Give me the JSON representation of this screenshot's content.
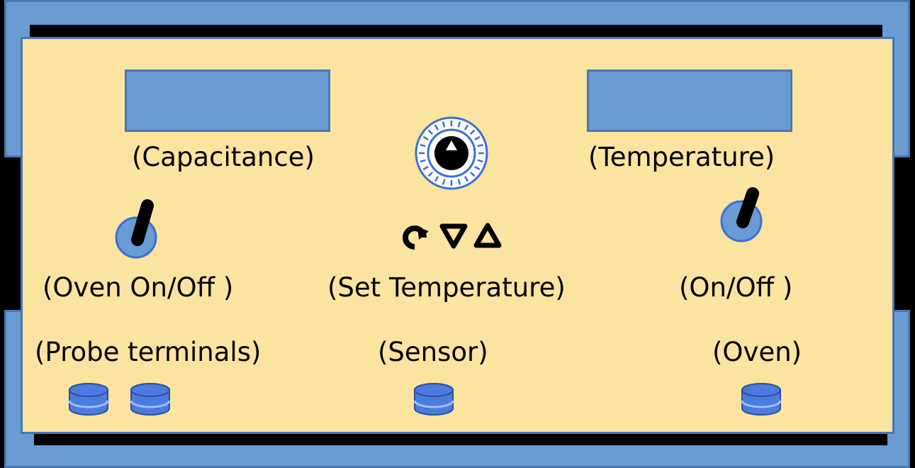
{
  "labels": {
    "capacitance": "(Capacitance)",
    "temperature": "(Temperature)",
    "oven_switch": "(Oven On/Off )",
    "set_temperature": "(Set Temperature)",
    "power_switch": "(On/Off )",
    "probe_terminals": "(Probe terminals)",
    "sensor": "(Sensor)",
    "oven": "(Oven)"
  },
  "icons": {
    "knob": "dial-knob-icon",
    "rotate": "rotate-clockwise-icon",
    "down": "triangle-down-icon",
    "up": "triangle-up-icon"
  },
  "colors": {
    "panel": "#fbe4a0",
    "frame": "#6a9bd2",
    "frame_border": "#4a78b0",
    "terminal": "#4c7be0"
  }
}
